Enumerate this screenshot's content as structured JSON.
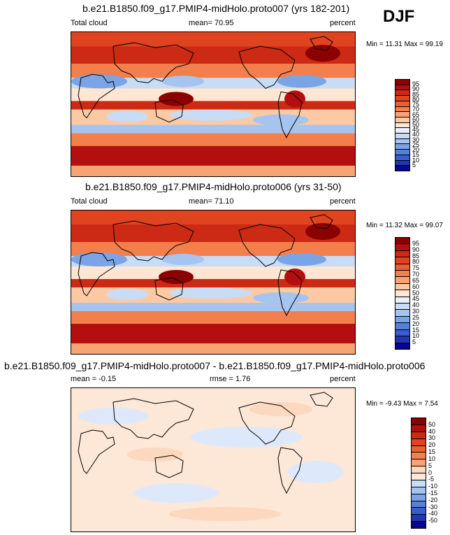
{
  "season": "DJF",
  "palette_abs": [
    "#8b0000",
    "#b40f0f",
    "#cc2a14",
    "#df4320",
    "#ea6030",
    "#f27f4c",
    "#f7a474",
    "#fbcaa5",
    "#fde6d3",
    "#e8f0fc",
    "#c8dcf6",
    "#a5c4ef",
    "#7aa4e6",
    "#5580dc",
    "#3a5ccc",
    "#2235b4",
    "#06068e"
  ],
  "palette_diff": [
    "#8b0000",
    "#b40f0f",
    "#cc2a14",
    "#df4320",
    "#ea6030",
    "#f27f4c",
    "#f7a474",
    "#fcd8bf",
    "#fde7d6",
    "#dde9fa",
    "#c8dcf6",
    "#a5c4ef",
    "#7aa4e6",
    "#5580dc",
    "#3a5ccc",
    "#2235b4",
    "#06068e"
  ],
  "panels": [
    {
      "title": "b.e21.B1850.f09_g17.PMIP4-midHolo.proto007 (yrs 182-201)",
      "left_label": "Total cloud",
      "mean_label": "mean=  70.95",
      "units": "percent",
      "minmax": "Min =  11.31 Max =  99.19",
      "colorbar_labels": [
        "95",
        "90",
        "85",
        "80",
        "75",
        "70",
        "65",
        "60",
        "50",
        "45",
        "40",
        "30",
        "25",
        "20",
        "15",
        "10",
        "5"
      ]
    },
    {
      "title": "b.e21.B1850.f09_g17.PMIP4-midHolo.proto006 (yrs 31-50)",
      "left_label": "Total cloud",
      "mean_label": "mean=  71.10",
      "units": "percent",
      "minmax": "Min =  11.32 Max =  99.07",
      "colorbar_labels": [
        "95",
        "90",
        "85",
        "80",
        "75",
        "70",
        "65",
        "60",
        "50",
        "45",
        "40",
        "30",
        "25",
        "20",
        "15",
        "10",
        "5"
      ]
    },
    {
      "title": "b.e21.B1850.f09_g17.PMIP4-midHolo.proto007 - b.e21.B1850.f09_g17.PMIP4-midHolo.proto006",
      "left_label": "mean =  -0.15",
      "rmse_label": "rmse =   1.76",
      "units": "percent",
      "minmax": "Min =  -9.43 Max =   7.54",
      "colorbar_labels": [
        "50",
        "40",
        "30",
        "20",
        "15",
        "10",
        "5",
        "0",
        "-5",
        "-10",
        "-15",
        "-20",
        "-30",
        "-40",
        "-50"
      ]
    }
  ]
}
